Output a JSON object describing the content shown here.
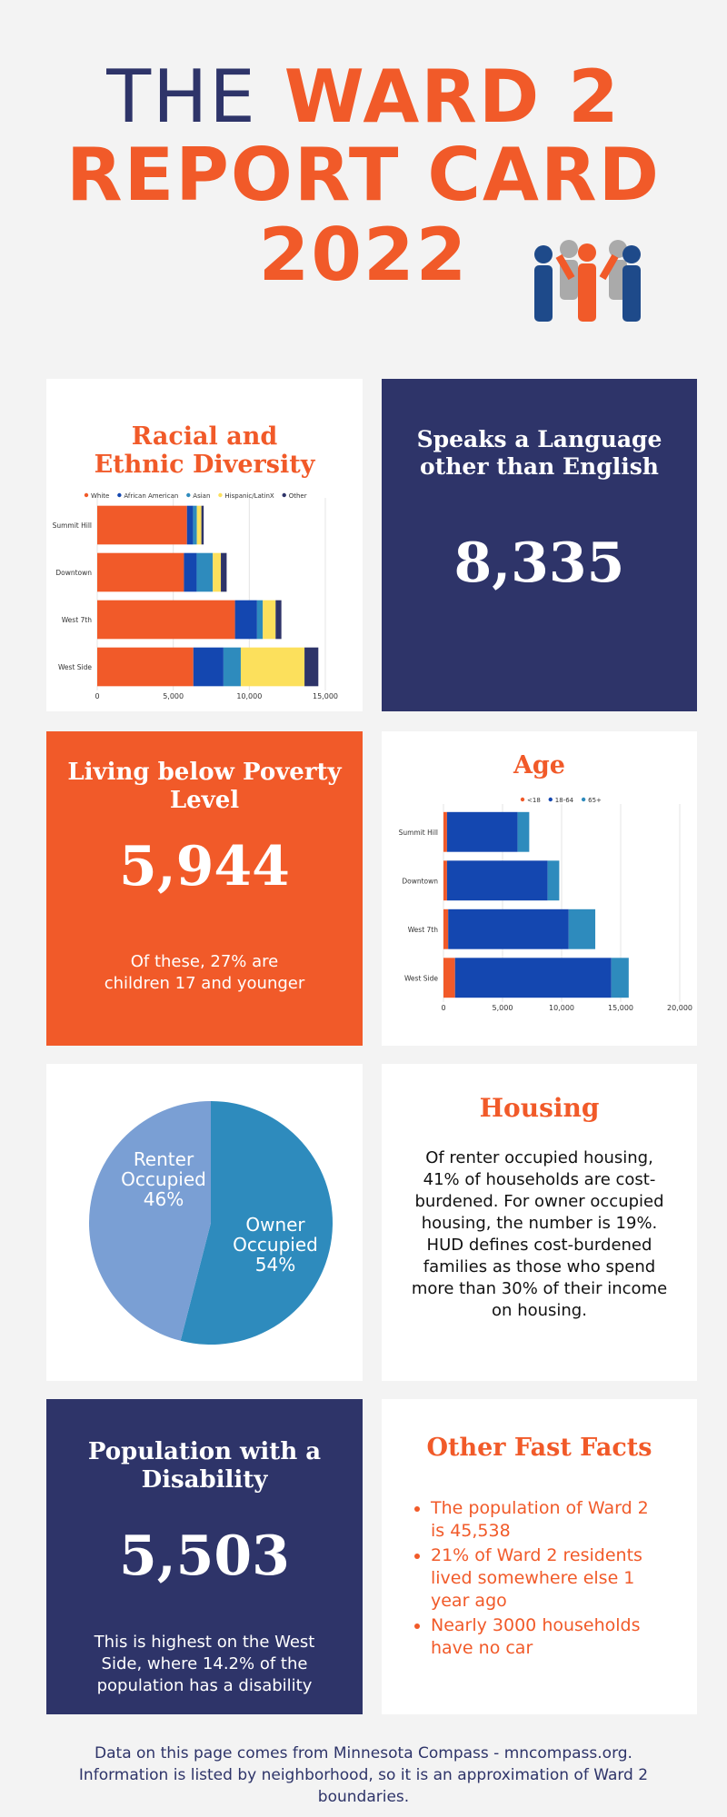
{
  "header": {
    "title_a": "THE",
    "title_b": "WARD 2",
    "title_line2": "REPORT CARD",
    "title_line3": "2022"
  },
  "chart_data": [
    {
      "type": "hbar-stacked",
      "title": "Racial and Ethnic Diversity",
      "categories": [
        "Summit Hill",
        "Downtown",
        "West 7th",
        "West Side"
      ],
      "series": [
        {
          "name": "White",
          "color": "#f15a29",
          "values": [
            5900,
            5700,
            9060,
            6320
          ]
        },
        {
          "name": "African American",
          "color": "#1447b0",
          "values": [
            400,
            840,
            1450,
            1980
          ]
        },
        {
          "name": "Asian",
          "color": "#2e8bbd",
          "values": [
            250,
            1060,
            380,
            1140
          ]
        },
        {
          "name": "Hispanic/LatinX",
          "color": "#fce05c",
          "values": [
            300,
            530,
            840,
            4190
          ]
        },
        {
          "name": "Other",
          "color": "#2e3469",
          "values": [
            150,
            380,
            380,
            910
          ]
        }
      ],
      "xlim": [
        0,
        15000
      ],
      "xticks": [
        0,
        {
          "value": 5000,
          "label": "5,000"
        },
        {
          "value": 10000,
          "label": "10,000"
        },
        {
          "value": 15000,
          "label": "15,000"
        }
      ],
      "grid": true
    },
    {
      "type": "hbar-stacked",
      "title": "Age",
      "categories": [
        "Summit Hill",
        "Downtown",
        "West 7th",
        "West Side"
      ],
      "series": [
        {
          "name": "<18",
          "color": "#f15a29",
          "values": [
            300,
            300,
            400,
            980
          ]
        },
        {
          "name": "18-64",
          "color": "#1447b0",
          "values": [
            5980,
            8520,
            10200,
            13230
          ]
        },
        {
          "name": "65+",
          "color": "#2e8bbd",
          "values": [
            980,
            980,
            2250,
            1470
          ]
        }
      ],
      "xlim": [
        0,
        20000
      ],
      "xticks": [
        0,
        {
          "value": 5000,
          "label": "5,000"
        },
        {
          "value": 10000,
          "label": "10,000"
        },
        {
          "value": 15000,
          "label": "15,000"
        },
        {
          "value": 20000,
          "label": "20,000"
        }
      ],
      "grid": true
    },
    {
      "type": "pie",
      "categories": [
        "Owner Occupied",
        "Renter Occupied"
      ],
      "values": [
        54,
        46
      ],
      "value_labels": [
        "54%",
        "46%"
      ],
      "colors": [
        "#2e8bbd",
        "#7a9fd4"
      ]
    }
  ],
  "language": {
    "title": "Speaks a Language other than English",
    "value": "8,335"
  },
  "poverty": {
    "title": "Living below Poverty Level",
    "value": "5,944",
    "note": "Of these, 27% are children 17 and younger"
  },
  "housing": {
    "title": "Housing",
    "text": "Of renter occupied housing, 41% of households are cost-burdened. For owner occupied housing, the number is 19%. HUD defines cost-burdened families as those who spend more than 30% of their income on housing."
  },
  "disability": {
    "title": "Population with a Disability",
    "value": "5,503",
    "note": "This is highest on the West Side, where 14.2% of the population has a disability"
  },
  "fast_facts": {
    "title": "Other Fast Facts",
    "items": [
      "The population of Ward 2 is 45,538",
      "21% of Ward 2 residents lived somewhere else 1 year ago",
      "Nearly 3000 households have no car"
    ]
  },
  "footer": "Data on this page comes from Minnesota Compass - mncompass.org. Information is listed by neighborhood, so it is an approximation of Ward 2 boundaries."
}
